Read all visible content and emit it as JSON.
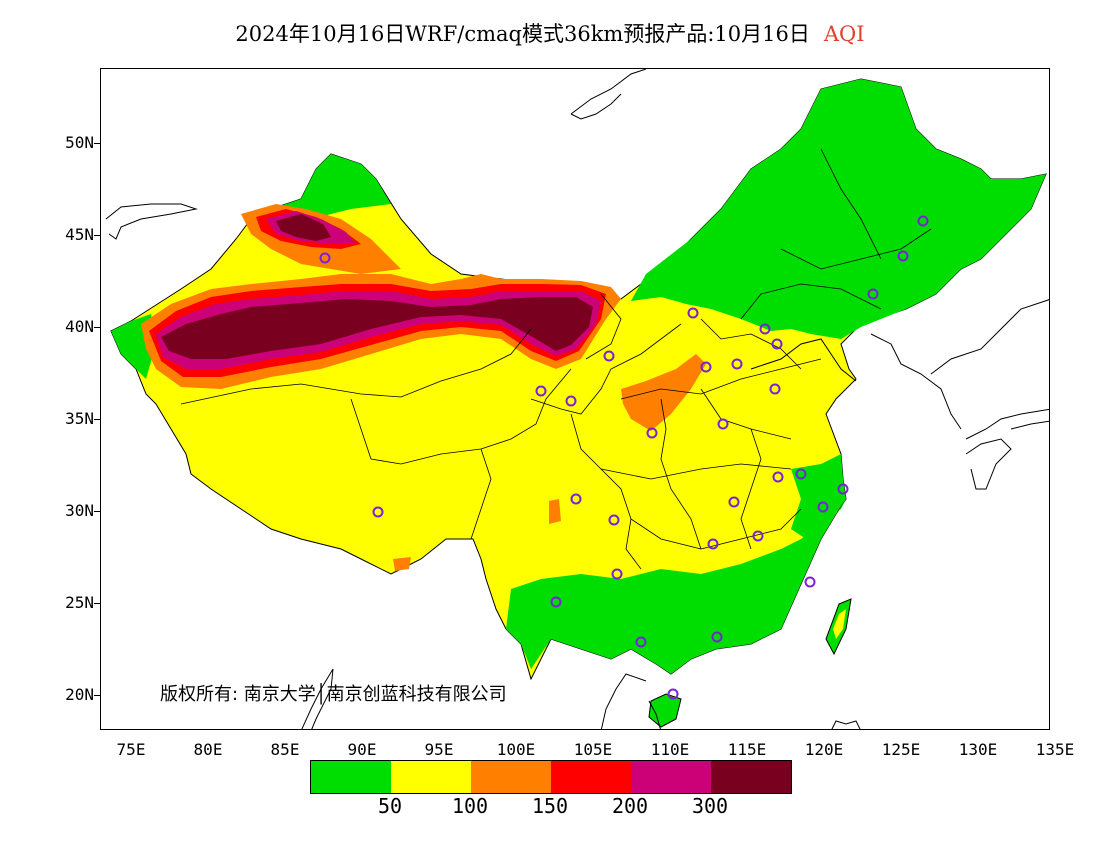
{
  "title": {
    "main": "2024年10月16日WRF/cmaq模式36km预报产品:10月16日",
    "product": "AQI"
  },
  "lat_labels": [
    "50N",
    "45N",
    "40N",
    "35N",
    "30N",
    "25N",
    "20N"
  ],
  "lon_labels": [
    "75E",
    "80E",
    "85E",
    "90E",
    "95E",
    "100E",
    "105E",
    "110E",
    "115E",
    "120E",
    "125E",
    "130E",
    "135E"
  ],
  "copyright": "版权所有: 南京大学│南京创蓝科技有限公司",
  "legend": {
    "colors": [
      "#00dd00",
      "#ffff00",
      "#ff8000",
      "#ff0000",
      "#cc0077",
      "#7a0020"
    ],
    "labels": [
      "50",
      "100",
      "150",
      "200",
      "300"
    ]
  },
  "colors": {
    "aqi_title": "#e0402e",
    "station_marker": "#7a22d6"
  }
}
